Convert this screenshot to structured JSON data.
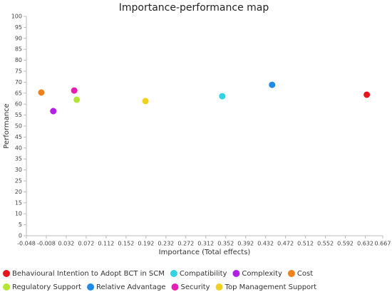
{
  "chart_data": {
    "type": "scatter",
    "title": "Importance-performance map",
    "x_label": "Importance (Total effects)",
    "y_label": "Performance",
    "xlim": [
      -0.048,
      0.667
    ],
    "xticks": [
      -0.048,
      -0.008,
      0.032,
      0.072,
      0.112,
      0.152,
      0.192,
      0.232,
      0.272,
      0.312,
      0.352,
      0.392,
      0.432,
      0.472,
      0.512,
      0.552,
      0.592,
      0.632,
      0.667
    ],
    "ylim": [
      0,
      100
    ],
    "yticks": [
      0,
      5,
      10,
      15,
      20,
      25,
      30,
      35,
      40,
      45,
      50,
      55,
      60,
      65,
      70,
      75,
      80,
      85,
      90,
      95,
      100
    ],
    "grid": false,
    "legend": "bottom",
    "series": [
      {
        "name": "Behavioural Intention to Adopt BCT in SCM",
        "color": "#e8141b",
        "x": [
          0.635
        ],
        "values": [
          64.3
        ]
      },
      {
        "name": "Compatibility",
        "color": "#33d3e6",
        "x": [
          0.345
        ],
        "values": [
          63.6
        ]
      },
      {
        "name": "Complexity",
        "color": "#b41ee6",
        "x": [
          0.006
        ],
        "values": [
          56.8
        ]
      },
      {
        "name": "Cost",
        "color": "#f0821e",
        "x": [
          -0.018
        ],
        "values": [
          65.3
        ]
      },
      {
        "name": "Regulatory Support",
        "color": "#b4e632",
        "x": [
          0.053
        ],
        "values": [
          62.0
        ]
      },
      {
        "name": "Relative Advantage",
        "color": "#1e8ce6",
        "x": [
          0.445
        ],
        "values": [
          68.8
        ]
      },
      {
        "name": "Security",
        "color": "#e61eb4",
        "x": [
          0.048
        ],
        "values": [
          66.2
        ]
      },
      {
        "name": "Top Management Support",
        "color": "#f0d21e",
        "x": [
          0.191
        ],
        "values": [
          61.4
        ]
      }
    ]
  }
}
